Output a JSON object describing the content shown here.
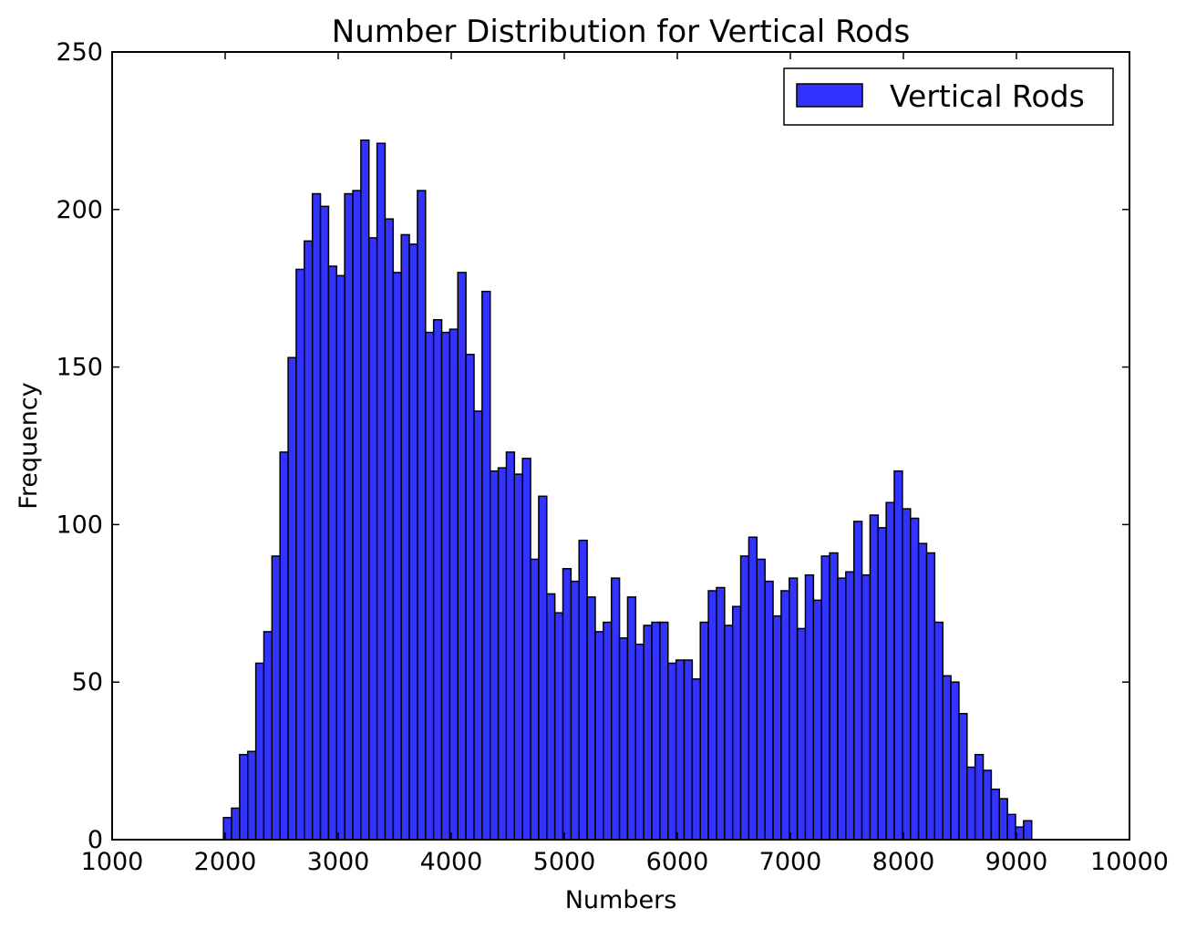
{
  "chart_data": {
    "type": "bar",
    "title": "Number Distribution for Vertical Rods",
    "xlabel": "Numbers",
    "ylabel": "Frequency",
    "xlim": [
      1000,
      10000
    ],
    "ylim": [
      0,
      250
    ],
    "xticks": [
      1000,
      2000,
      3000,
      4000,
      5000,
      6000,
      7000,
      8000,
      9000,
      10000
    ],
    "yticks": [
      0,
      50,
      100,
      150,
      200,
      250
    ],
    "grid": false,
    "legend_position": "top-right",
    "bin_start": 1985,
    "bin_width": 71.5,
    "series": [
      {
        "name": "Vertical Rods",
        "color": "#3333ff",
        "edge_color": "#000000",
        "values": [
          7,
          10,
          27,
          28,
          56,
          66,
          90,
          123,
          153,
          181,
          190,
          205,
          201,
          182,
          179,
          205,
          206,
          222,
          191,
          221,
          197,
          180,
          192,
          189,
          206,
          161,
          165,
          161,
          162,
          180,
          154,
          136,
          174,
          117,
          118,
          123,
          116,
          121,
          89,
          109,
          78,
          72,
          86,
          82,
          95,
          77,
          66,
          69,
          83,
          64,
          77,
          62,
          68,
          69,
          69,
          56,
          57,
          57,
          51,
          69,
          79,
          80,
          68,
          74,
          90,
          96,
          89,
          82,
          71,
          79,
          83,
          67,
          84,
          76,
          90,
          91,
          83,
          85,
          101,
          84,
          103,
          99,
          107,
          117,
          105,
          102,
          94,
          91,
          69,
          52,
          50,
          40,
          23,
          27,
          22,
          16,
          13,
          8,
          4,
          6
        ]
      }
    ]
  }
}
